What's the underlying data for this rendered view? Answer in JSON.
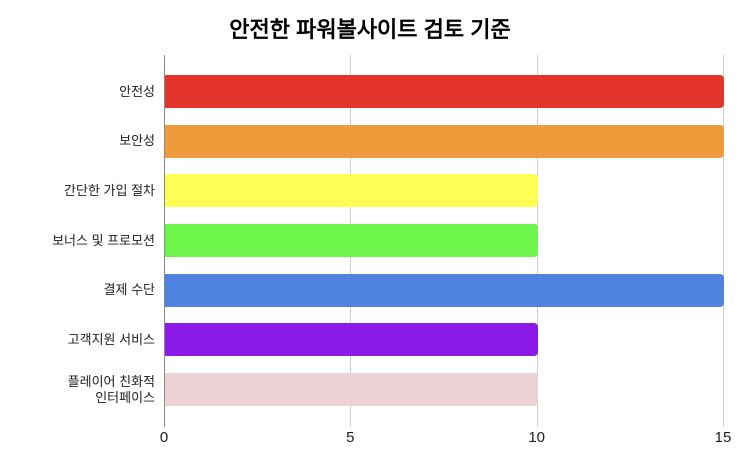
{
  "chart_data": {
    "type": "bar",
    "orientation": "horizontal",
    "title": "안전한 파워볼사이트 검토 기준",
    "categories": [
      "안전성",
      "보안성",
      "간단한 가입 절차",
      "보너스 및 프로모션",
      "결제 수단",
      "고객지원 서비스",
      "플레이어 친화적 인터페이스"
    ],
    "category_label_lines": [
      [
        "안전성"
      ],
      [
        "보안성"
      ],
      [
        "간단한 가입 절차"
      ],
      [
        "보너스 및 프로모션"
      ],
      [
        "결제 수단"
      ],
      [
        "고객지원 서비스"
      ],
      [
        "플레이어 친화적",
        "인터페이스"
      ]
    ],
    "values": [
      15,
      15,
      10,
      10,
      15,
      10,
      10
    ],
    "bar_colors": [
      "#e3342b",
      "#ee9c3b",
      "#fefe55",
      "#6df54c",
      "#4f83e1",
      "#8c1ae8",
      "#edd3d5"
    ],
    "xlim": [
      0,
      15
    ],
    "xticks": [
      0,
      5,
      10,
      15
    ],
    "grid": true,
    "legend": false,
    "xlabel": "",
    "ylabel": "",
    "colors": {
      "axis": "#8a8a8a",
      "gridline": "#cccccc",
      "text": "#212121",
      "title": "#000000",
      "background": "#ffffff"
    }
  }
}
